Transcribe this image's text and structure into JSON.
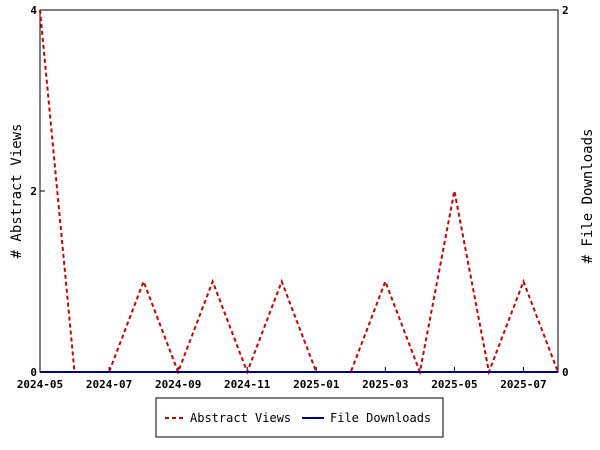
{
  "chart_data": {
    "type": "line",
    "categories": [
      "2024-05",
      "2024-06",
      "2024-07",
      "2024-08",
      "2024-09",
      "2024-10",
      "2024-11",
      "2024-12",
      "2025-01",
      "2025-02",
      "2025-03",
      "2025-04",
      "2025-05",
      "2025-06",
      "2025-07",
      "2025-08"
    ],
    "x_tick_labels": [
      "2024-05",
      "2024-07",
      "2024-09",
      "2024-11",
      "2025-01",
      "2025-03",
      "2025-05",
      "2025-07"
    ],
    "series": [
      {
        "name": "Abstract Views",
        "axis": "left",
        "color": "#cc0000",
        "dash": "dashed",
        "values": [
          4,
          0,
          0,
          1,
          0,
          1,
          0,
          1,
          0,
          0,
          1,
          0,
          2,
          0,
          1,
          0
        ]
      },
      {
        "name": "File Downloads",
        "axis": "right",
        "color": "#000099",
        "dash": "solid",
        "values": [
          0,
          0,
          0,
          0,
          0,
          0,
          0,
          0,
          0,
          0,
          0,
          0,
          0,
          0,
          0,
          0
        ]
      }
    ],
    "ylabel_left": "# Abstract Views",
    "ylabel_right": "# File Downloads",
    "ylim_left": [
      0,
      4
    ],
    "ylim_right": [
      0,
      2
    ],
    "yticks_left": [
      "0",
      "2",
      "4"
    ],
    "yticks_right": [
      "0",
      "2"
    ],
    "legend": {
      "position": "bottom",
      "entries": [
        "Abstract Views",
        "File Downloads"
      ]
    },
    "grid": false
  }
}
